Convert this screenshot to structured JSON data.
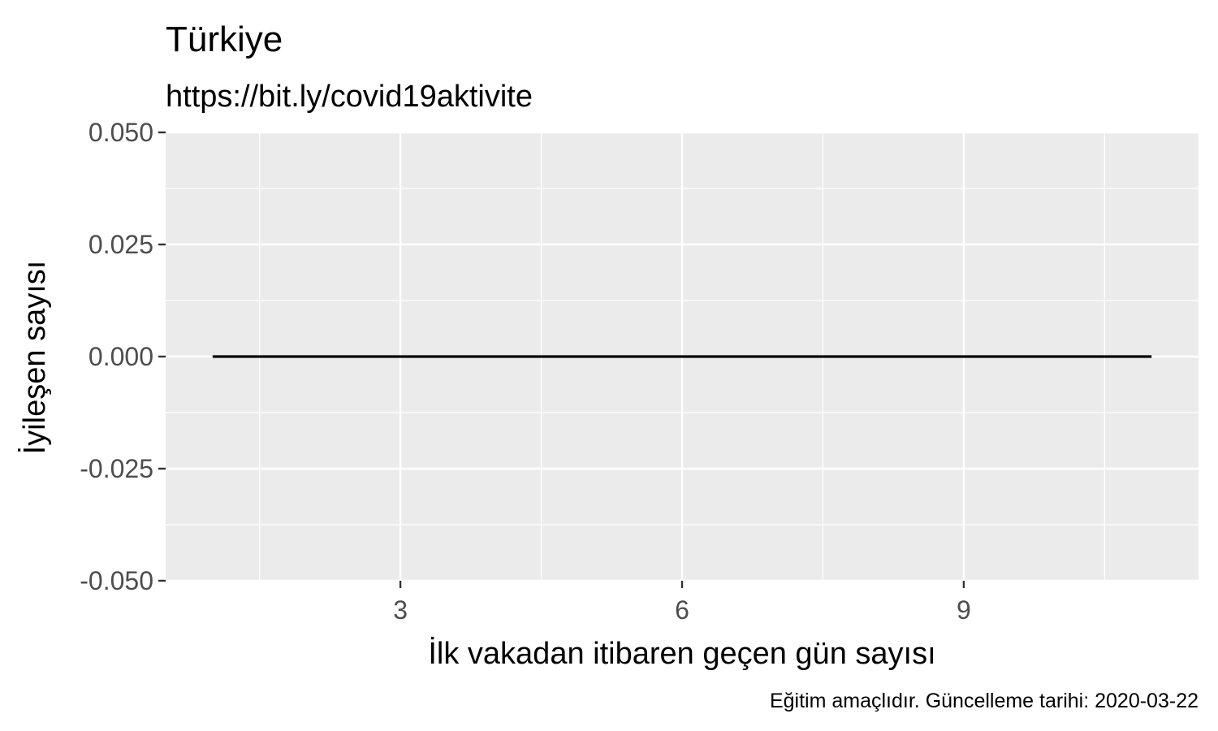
{
  "chart_data": {
    "type": "line",
    "title": "Türkiye",
    "subtitle": "https://bit.ly/covid19aktivite",
    "xlabel": "İlk vakadan itibaren geçen gün sayısı",
    "ylabel": "İyileşen sayısı",
    "caption": "Eğitim amaçlıdır. Güncelleme tarihi: 2020-03-22",
    "xlim": [
      0.5,
      11.5
    ],
    "ylim": [
      -0.05,
      0.05
    ],
    "x_ticks": [
      3,
      6,
      9
    ],
    "x_tick_labels": [
      "3",
      "6",
      "9"
    ],
    "y_ticks": [
      -0.05,
      -0.025,
      0,
      0.025,
      0.05
    ],
    "y_tick_labels": [
      "-0.050",
      "-0.025",
      "0.000",
      "0.025",
      "0.050"
    ],
    "grid": true,
    "series": [
      {
        "x": [
          1,
          2,
          3,
          4,
          5,
          6,
          7,
          8,
          9,
          10,
          11
        ],
        "values": [
          0,
          0,
          0,
          0,
          0,
          0,
          0,
          0,
          0,
          0,
          0
        ],
        "color": "#000000"
      }
    ],
    "panel_color": "#ebebeb",
    "grid_color": "#ffffff"
  }
}
